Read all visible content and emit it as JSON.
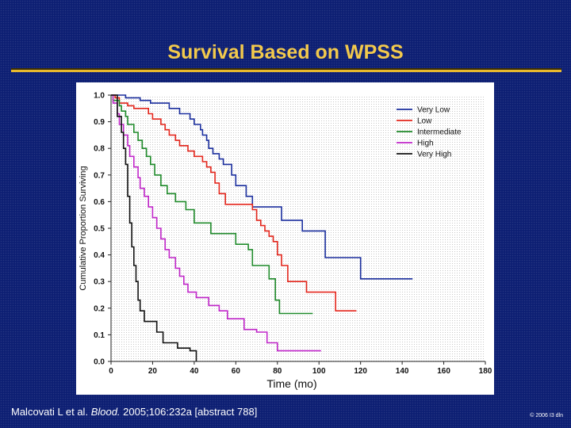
{
  "slide": {
    "title": "Survival Based on WPSS",
    "citation_pre": "Malcovati L et al. ",
    "citation_journal": "Blood.",
    "citation_post": " 2005;106:232a [abstract 788]",
    "copyright": "© 2006 I3 dln"
  },
  "colors": {
    "title": "#f2c94c",
    "rule": "#e8b92e",
    "background": "#0d1f73"
  },
  "chart_data": {
    "type": "line",
    "step": true,
    "title": "",
    "xlabel": "Time (mo)",
    "ylabel": "Cumulative Proportion Surviving",
    "xlim": [
      0,
      180
    ],
    "ylim": [
      0,
      1.0
    ],
    "xticks": [
      "0",
      "20",
      "40",
      "60",
      "80",
      "100",
      "120",
      "140",
      "160",
      "180"
    ],
    "yticks": [
      "0.0",
      "0.1",
      "0.2",
      "0.3",
      "0.4",
      "0.5",
      "0.6",
      "0.7",
      "0.8",
      "0.9",
      "1.0"
    ],
    "legend_position": "top-right",
    "series": [
      {
        "name": "Very Low",
        "color": "#1b2f9e",
        "points": [
          [
            0,
            1.0
          ],
          [
            7,
            1.0
          ],
          [
            7,
            0.99
          ],
          [
            14,
            0.99
          ],
          [
            14,
            0.98
          ],
          [
            19,
            0.98
          ],
          [
            19,
            0.97
          ],
          [
            28,
            0.97
          ],
          [
            28,
            0.95
          ],
          [
            33,
            0.95
          ],
          [
            33,
            0.93
          ],
          [
            38,
            0.93
          ],
          [
            38,
            0.91
          ],
          [
            40,
            0.91
          ],
          [
            40,
            0.89
          ],
          [
            43,
            0.89
          ],
          [
            43,
            0.87
          ],
          [
            44,
            0.87
          ],
          [
            44,
            0.85
          ],
          [
            46,
            0.85
          ],
          [
            46,
            0.83
          ],
          [
            47,
            0.83
          ],
          [
            47,
            0.8
          ],
          [
            49,
            0.8
          ],
          [
            49,
            0.78
          ],
          [
            52,
            0.78
          ],
          [
            52,
            0.76
          ],
          [
            54,
            0.76
          ],
          [
            54,
            0.74
          ],
          [
            58,
            0.74
          ],
          [
            58,
            0.7
          ],
          [
            60,
            0.7
          ],
          [
            60,
            0.66
          ],
          [
            65,
            0.66
          ],
          [
            65,
            0.62
          ],
          [
            68,
            0.62
          ],
          [
            68,
            0.58
          ],
          [
            82,
            0.58
          ],
          [
            82,
            0.53
          ],
          [
            92,
            0.53
          ],
          [
            92,
            0.49
          ],
          [
            103,
            0.49
          ],
          [
            103,
            0.39
          ],
          [
            120,
            0.39
          ],
          [
            120,
            0.31
          ],
          [
            145,
            0.31
          ]
        ]
      },
      {
        "name": "Low",
        "color": "#e3261c",
        "points": [
          [
            0,
            1.0
          ],
          [
            2,
            1.0
          ],
          [
            2,
            0.99
          ],
          [
            4,
            0.99
          ],
          [
            4,
            0.97
          ],
          [
            8,
            0.97
          ],
          [
            8,
            0.96
          ],
          [
            11,
            0.96
          ],
          [
            11,
            0.95
          ],
          [
            18,
            0.95
          ],
          [
            18,
            0.93
          ],
          [
            20,
            0.93
          ],
          [
            20,
            0.91
          ],
          [
            24,
            0.91
          ],
          [
            24,
            0.89
          ],
          [
            26,
            0.89
          ],
          [
            26,
            0.87
          ],
          [
            28,
            0.87
          ],
          [
            28,
            0.85
          ],
          [
            31,
            0.85
          ],
          [
            31,
            0.83
          ],
          [
            33,
            0.83
          ],
          [
            33,
            0.81
          ],
          [
            37,
            0.81
          ],
          [
            37,
            0.79
          ],
          [
            40,
            0.79
          ],
          [
            40,
            0.77
          ],
          [
            44,
            0.77
          ],
          [
            44,
            0.75
          ],
          [
            46,
            0.75
          ],
          [
            46,
            0.73
          ],
          [
            48,
            0.73
          ],
          [
            48,
            0.71
          ],
          [
            50,
            0.71
          ],
          [
            50,
            0.67
          ],
          [
            52,
            0.67
          ],
          [
            52,
            0.63
          ],
          [
            55,
            0.63
          ],
          [
            55,
            0.59
          ],
          [
            68,
            0.59
          ],
          [
            68,
            0.57
          ],
          [
            70,
            0.57
          ],
          [
            70,
            0.53
          ],
          [
            72,
            0.53
          ],
          [
            72,
            0.51
          ],
          [
            74,
            0.51
          ],
          [
            74,
            0.49
          ],
          [
            76,
            0.49
          ],
          [
            76,
            0.47
          ],
          [
            78,
            0.47
          ],
          [
            78,
            0.45
          ],
          [
            80,
            0.45
          ],
          [
            80,
            0.4
          ],
          [
            82,
            0.4
          ],
          [
            82,
            0.36
          ],
          [
            85,
            0.36
          ],
          [
            85,
            0.3
          ],
          [
            94,
            0.3
          ],
          [
            94,
            0.26
          ],
          [
            108,
            0.26
          ],
          [
            108,
            0.19
          ],
          [
            118,
            0.19
          ]
        ]
      },
      {
        "name": "Intermediate",
        "color": "#1f8a2a",
        "points": [
          [
            0,
            1.0
          ],
          [
            1,
            1.0
          ],
          [
            1,
            0.98
          ],
          [
            4,
            0.98
          ],
          [
            4,
            0.96
          ],
          [
            5,
            0.96
          ],
          [
            5,
            0.94
          ],
          [
            7,
            0.94
          ],
          [
            7,
            0.92
          ],
          [
            8,
            0.92
          ],
          [
            8,
            0.89
          ],
          [
            11,
            0.89
          ],
          [
            11,
            0.86
          ],
          [
            13,
            0.86
          ],
          [
            13,
            0.83
          ],
          [
            15,
            0.83
          ],
          [
            15,
            0.8
          ],
          [
            17,
            0.8
          ],
          [
            17,
            0.77
          ],
          [
            19,
            0.77
          ],
          [
            19,
            0.74
          ],
          [
            21,
            0.74
          ],
          [
            21,
            0.7
          ],
          [
            24,
            0.7
          ],
          [
            24,
            0.66
          ],
          [
            27,
            0.66
          ],
          [
            27,
            0.63
          ],
          [
            31,
            0.63
          ],
          [
            31,
            0.6
          ],
          [
            36,
            0.6
          ],
          [
            36,
            0.57
          ],
          [
            40,
            0.57
          ],
          [
            40,
            0.52
          ],
          [
            48,
            0.52
          ],
          [
            48,
            0.48
          ],
          [
            60,
            0.48
          ],
          [
            60,
            0.44
          ],
          [
            66,
            0.44
          ],
          [
            66,
            0.42
          ],
          [
            68,
            0.42
          ],
          [
            68,
            0.36
          ],
          [
            76,
            0.36
          ],
          [
            76,
            0.31
          ],
          [
            79,
            0.31
          ],
          [
            79,
            0.23
          ],
          [
            81,
            0.23
          ],
          [
            81,
            0.18
          ],
          [
            97,
            0.18
          ]
        ]
      },
      {
        "name": "High",
        "color": "#c026c9",
        "points": [
          [
            0,
            1.0
          ],
          [
            1,
            1.0
          ],
          [
            1,
            0.97
          ],
          [
            3,
            0.97
          ],
          [
            3,
            0.93
          ],
          [
            4,
            0.93
          ],
          [
            4,
            0.89
          ],
          [
            6,
            0.89
          ],
          [
            6,
            0.85
          ],
          [
            8,
            0.85
          ],
          [
            8,
            0.81
          ],
          [
            9,
            0.81
          ],
          [
            9,
            0.77
          ],
          [
            11,
            0.77
          ],
          [
            11,
            0.73
          ],
          [
            13,
            0.73
          ],
          [
            13,
            0.69
          ],
          [
            14,
            0.69
          ],
          [
            14,
            0.65
          ],
          [
            16,
            0.65
          ],
          [
            16,
            0.62
          ],
          [
            18,
            0.62
          ],
          [
            18,
            0.58
          ],
          [
            20,
            0.58
          ],
          [
            20,
            0.54
          ],
          [
            22,
            0.54
          ],
          [
            22,
            0.5
          ],
          [
            24,
            0.5
          ],
          [
            24,
            0.46
          ],
          [
            26,
            0.46
          ],
          [
            26,
            0.42
          ],
          [
            28,
            0.42
          ],
          [
            28,
            0.39
          ],
          [
            31,
            0.39
          ],
          [
            31,
            0.35
          ],
          [
            33,
            0.35
          ],
          [
            33,
            0.32
          ],
          [
            35,
            0.32
          ],
          [
            35,
            0.29
          ],
          [
            37,
            0.29
          ],
          [
            37,
            0.26
          ],
          [
            41,
            0.26
          ],
          [
            41,
            0.24
          ],
          [
            47,
            0.24
          ],
          [
            47,
            0.21
          ],
          [
            52,
            0.21
          ],
          [
            52,
            0.19
          ],
          [
            56,
            0.19
          ],
          [
            56,
            0.16
          ],
          [
            64,
            0.16
          ],
          [
            64,
            0.12
          ],
          [
            70,
            0.12
          ],
          [
            70,
            0.11
          ],
          [
            75,
            0.11
          ],
          [
            75,
            0.07
          ],
          [
            80,
            0.07
          ],
          [
            80,
            0.04
          ],
          [
            101,
            0.04
          ]
        ]
      },
      {
        "name": "Very High",
        "color": "#111111",
        "points": [
          [
            0,
            1.0
          ],
          [
            3,
            1.0
          ],
          [
            3,
            0.92
          ],
          [
            5,
            0.92
          ],
          [
            5,
            0.86
          ],
          [
            6,
            0.86
          ],
          [
            6,
            0.8
          ],
          [
            7,
            0.8
          ],
          [
            7,
            0.74
          ],
          [
            8,
            0.74
          ],
          [
            8,
            0.62
          ],
          [
            9,
            0.62
          ],
          [
            9,
            0.52
          ],
          [
            10,
            0.52
          ],
          [
            10,
            0.43
          ],
          [
            11,
            0.43
          ],
          [
            11,
            0.36
          ],
          [
            12,
            0.36
          ],
          [
            12,
            0.3
          ],
          [
            13,
            0.3
          ],
          [
            13,
            0.23
          ],
          [
            14,
            0.23
          ],
          [
            14,
            0.19
          ],
          [
            16,
            0.19
          ],
          [
            16,
            0.15
          ],
          [
            22,
            0.15
          ],
          [
            22,
            0.11
          ],
          [
            25,
            0.11
          ],
          [
            25,
            0.07
          ],
          [
            32,
            0.07
          ],
          [
            32,
            0.05
          ],
          [
            38,
            0.05
          ],
          [
            38,
            0.04
          ],
          [
            41,
            0.04
          ],
          [
            41,
            0.0
          ]
        ]
      }
    ]
  }
}
